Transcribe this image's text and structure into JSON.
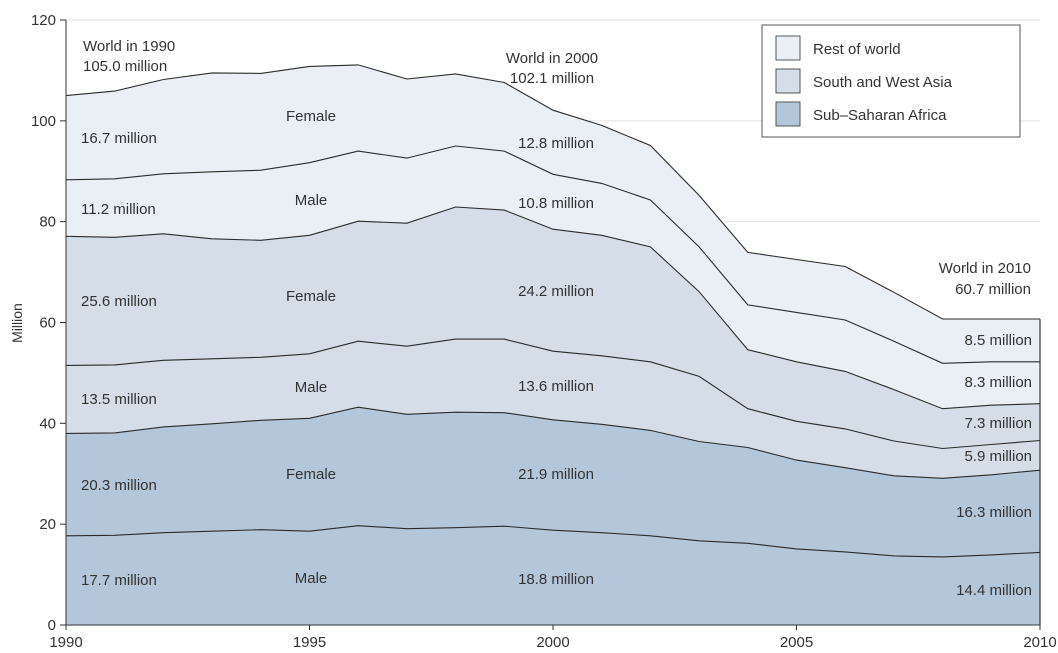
{
  "chart_data": {
    "type": "area",
    "stacked": true,
    "ylabel": "Million",
    "xlim": [
      1990,
      2010
    ],
    "ylim": [
      0,
      120
    ],
    "x_ticks": [
      1990,
      1995,
      2000,
      2005,
      2010
    ],
    "y_ticks": [
      0,
      20,
      40,
      60,
      80,
      100,
      120
    ],
    "grid": "horizontal",
    "legend_position": "top-right",
    "x": [
      1990,
      1991,
      1992,
      1993,
      1994,
      1995,
      1996,
      1997,
      1998,
      1999,
      2000,
      2001,
      2002,
      2003,
      2004,
      2005,
      2006,
      2007,
      2008,
      2009,
      2010
    ],
    "cumulative_boundaries": {
      "ssa_male": [
        17.7,
        17.8,
        18.3,
        18.6,
        18.9,
        18.6,
        19.7,
        19.1,
        19.3,
        19.6,
        18.8,
        18.3,
        17.7,
        16.7,
        16.2,
        15.1,
        14.5,
        13.7,
        13.5,
        13.9,
        14.4
      ],
      "ssa_female": [
        38.0,
        38.1,
        39.3,
        39.9,
        40.6,
        41.0,
        43.2,
        41.8,
        42.2,
        42.1,
        40.7,
        39.8,
        38.6,
        36.4,
        35.2,
        32.7,
        31.2,
        29.6,
        29.1,
        29.8,
        30.7
      ],
      "swa_male": [
        51.5,
        51.6,
        52.5,
        52.8,
        53.1,
        53.8,
        56.3,
        55.3,
        56.7,
        56.7,
        54.3,
        53.4,
        52.2,
        49.3,
        42.9,
        40.4,
        38.9,
        36.5,
        35.0,
        35.8,
        36.6
      ],
      "swa_female": [
        77.1,
        76.9,
        77.6,
        76.6,
        76.3,
        77.3,
        80.1,
        79.7,
        82.9,
        82.3,
        78.5,
        77.3,
        75.0,
        66.1,
        54.6,
        52.2,
        50.3,
        46.7,
        42.9,
        43.6,
        43.9
      ],
      "row_male": [
        88.3,
        88.5,
        89.5,
        89.9,
        90.2,
        91.7,
        94.0,
        92.6,
        95.0,
        94.0,
        89.4,
        87.6,
        84.3,
        75.0,
        63.5,
        62.0,
        60.5,
        56.3,
        51.9,
        52.2,
        52.2
      ],
      "row_female": [
        105.0,
        105.9,
        108.2,
        109.5,
        109.4,
        110.8,
        111.1,
        108.3,
        109.3,
        107.6,
        102.1,
        99.1,
        95.1,
        85.2,
        73.9,
        72.5,
        71.1,
        66.0,
        60.7,
        60.7,
        60.7
      ]
    },
    "series": [
      {
        "name": "Sub-Saharan Africa",
        "color": "#b4c6d9"
      },
      {
        "name": "South and West Asia",
        "color": "#d4dde8"
      },
      {
        "name": "Rest of world",
        "color": "#eaeff5"
      }
    ]
  },
  "legend": {
    "items": [
      {
        "label": "Rest of world",
        "color": "#eaeff5"
      },
      {
        "label": "South and West Asia",
        "color": "#d4dde8"
      },
      {
        "label": "Sub–Saharan Africa",
        "color": "#b4c6d9"
      }
    ]
  },
  "annotations": {
    "world_1990": {
      "title": "World in 1990",
      "value": "105.0 million"
    },
    "world_2000": {
      "title": "World in 2000",
      "value": "102.1 million"
    },
    "world_2010": {
      "title": "World in 2010",
      "value": "60.7 million"
    },
    "col_1990": [
      "16.7 million",
      "11.2 million",
      "25.6 million",
      "13.5 million",
      "20.3 million",
      "17.7 million"
    ],
    "col_1995": [
      "Female",
      "Male",
      "Female",
      "Male",
      "Female",
      "Male"
    ],
    "col_2000": [
      "12.8 million",
      "10.8 million",
      "24.2 million",
      "13.6 million",
      "21.9 million",
      "18.8 million"
    ],
    "col_2010": [
      "8.5 million",
      "8.3 million",
      "7.3 million",
      "5.9 million",
      "16.3 million",
      "14.4 million"
    ]
  }
}
